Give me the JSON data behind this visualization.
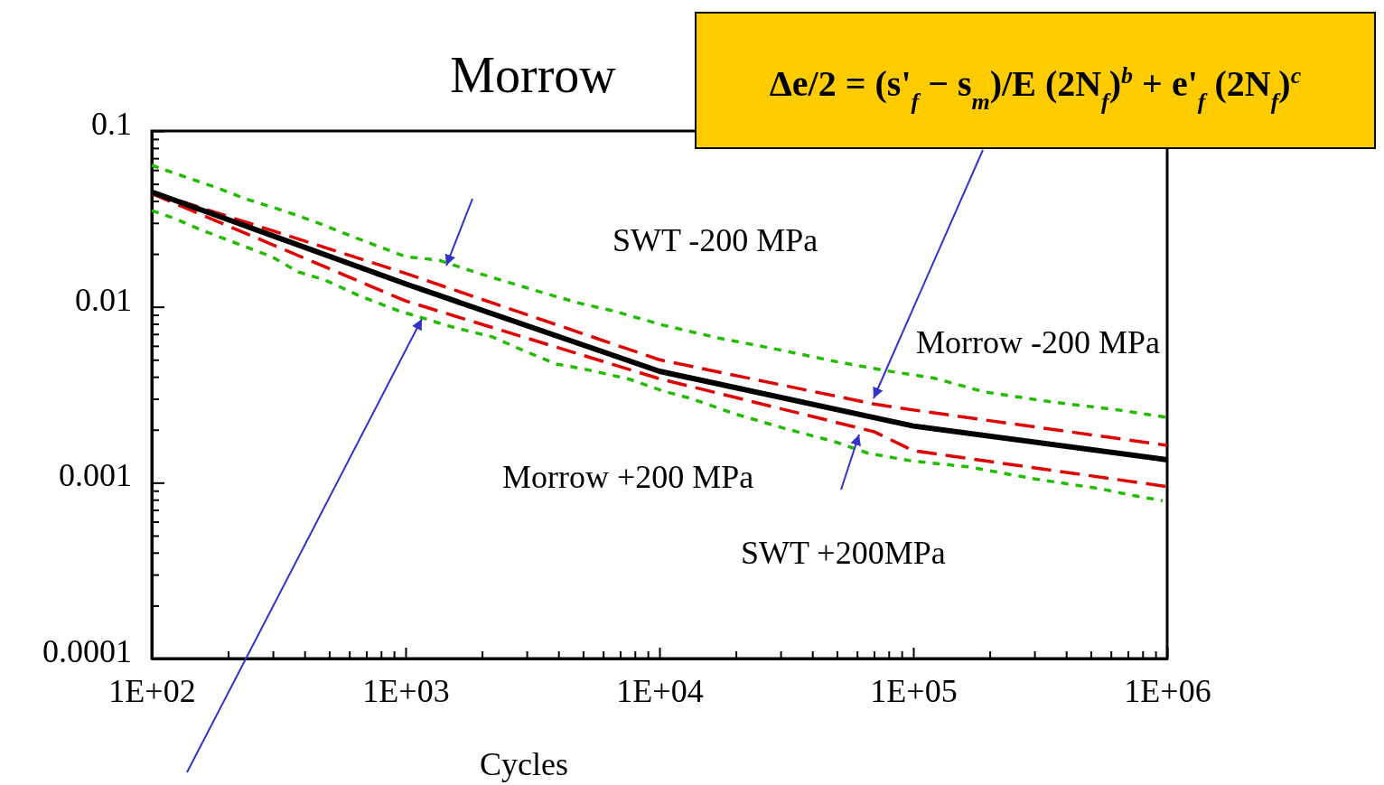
{
  "chart_data": {
    "type": "line",
    "title": "Morrow",
    "xlabel": "Cycles",
    "log": "xy",
    "grid": false,
    "xlim": [
      100,
      1000000
    ],
    "ylim": [
      0.0001,
      0.1
    ],
    "xticks": [
      {
        "value": 100,
        "label": "1E+02"
      },
      {
        "value": 200,
        "label": null
      },
      {
        "value": 300,
        "label": null
      },
      {
        "value": 400,
        "label": null
      },
      {
        "value": 500,
        "label": null
      },
      {
        "value": 600,
        "label": null
      },
      {
        "value": 700,
        "label": null
      },
      {
        "value": 800,
        "label": null
      },
      {
        "value": 900,
        "label": null
      },
      {
        "value": 1000,
        "label": "1E+03"
      },
      {
        "value": 2000,
        "label": null
      },
      {
        "value": 3000,
        "label": null
      },
      {
        "value": 4000,
        "label": null
      },
      {
        "value": 5000,
        "label": null
      },
      {
        "value": 6000,
        "label": null
      },
      {
        "value": 7000,
        "label": null
      },
      {
        "value": 8000,
        "label": null
      },
      {
        "value": 9000,
        "label": null
      },
      {
        "value": 10000,
        "label": "1E+04"
      },
      {
        "value": 20000,
        "label": null
      },
      {
        "value": 30000,
        "label": null
      },
      {
        "value": 40000,
        "label": null
      },
      {
        "value": 50000,
        "label": null
      },
      {
        "value": 60000,
        "label": null
      },
      {
        "value": 70000,
        "label": null
      },
      {
        "value": 80000,
        "label": null
      },
      {
        "value": 90000,
        "label": null
      },
      {
        "value": 100000,
        "label": "1E+05"
      },
      {
        "value": 200000,
        "label": null
      },
      {
        "value": 300000,
        "label": null
      },
      {
        "value": 400000,
        "label": null
      },
      {
        "value": 500000,
        "label": null
      },
      {
        "value": 600000,
        "label": null
      },
      {
        "value": 700000,
        "label": null
      },
      {
        "value": 800000,
        "label": null
      },
      {
        "value": 900000,
        "label": null
      },
      {
        "value": 1000000,
        "label": "1E+06"
      }
    ],
    "yticks": [
      0.0001,
      {
        "value": 0.0002,
        "label": null
      },
      {
        "value": 0.0003,
        "label": null
      },
      {
        "value": 0.0004,
        "label": null
      },
      {
        "value": 0.0005,
        "label": null
      },
      {
        "value": 0.0006,
        "label": null
      },
      {
        "value": 0.0007,
        "label": null
      },
      {
        "value": 0.0008,
        "label": null
      },
      {
        "value": 0.0009,
        "label": null
      },
      0.001,
      {
        "value": 0.002,
        "label": null
      },
      {
        "value": 0.003,
        "label": null
      },
      {
        "value": 0.004,
        "label": null
      },
      {
        "value": 0.005,
        "label": null
      },
      {
        "value": 0.006,
        "label": null
      },
      {
        "value": 0.007,
        "label": null
      },
      {
        "value": 0.008,
        "label": null
      },
      {
        "value": 0.009,
        "label": null
      },
      0.01,
      {
        "value": 0.02,
        "label": null
      },
      {
        "value": 0.03,
        "label": null
      },
      {
        "value": 0.04,
        "label": null
      },
      {
        "value": 0.05,
        "label": null
      },
      {
        "value": 0.06,
        "label": null
      },
      {
        "value": 0.07,
        "label": null
      },
      {
        "value": 0.08,
        "label": null
      },
      {
        "value": 0.09,
        "label": null
      },
      0.1
    ],
    "marker": "none",
    "series": [
      {
        "color": "#22bb00",
        "line_style": "dotted",
        "x": [
          100,
          139,
          182,
          233,
          337,
          455,
          617,
          1000,
          1355,
          1941,
          3365,
          4823,
          6531,
          10330,
          16900,
          29250,
          48980,
          76900,
          121600,
          191000,
          350000,
          642000,
          1000000
        ],
        "values": [
          0.0638,
          0.0541,
          0.0474,
          0.0412,
          0.0349,
          0.0299,
          0.0251,
          0.0193,
          0.0184,
          0.0155,
          0.0122,
          0.0105,
          0.0095,
          0.00787,
          0.00667,
          0.00572,
          0.0049,
          0.00435,
          0.00392,
          0.00328,
          0.00288,
          0.00259,
          0.00235
        ]
      },
      {
        "color": "#22bb00",
        "line_style": "dotted",
        "x": [
          100,
          123,
          143,
          172,
          233,
          297,
          377,
          482,
          653,
          937,
          1197,
          1434,
          1731,
          2196,
          2904,
          3930,
          5320,
          7640,
          10330,
          13210,
          19700,
          30950,
          48980,
          66370,
          98400,
          164800,
          302000,
          554000,
          750000,
          960000
        ],
        "values": [
          0.0353,
          0.0318,
          0.0289,
          0.026,
          0.022,
          0.0193,
          0.0158,
          0.0142,
          0.0116,
          0.0095,
          0.00855,
          0.00787,
          0.00733,
          0.00675,
          0.00565,
          0.00473,
          0.00436,
          0.00387,
          0.00332,
          0.00302,
          0.00247,
          0.00204,
          0.00171,
          0.00147,
          0.00133,
          0.00123,
          0.00105,
          0.00092,
          0.00084,
          0.00079
        ]
      },
      {
        "color": "#e00000",
        "line_style": "dashed",
        "x": [
          100,
          1000,
          10000,
          70000,
          100000,
          1000000
        ],
        "values": [
          0.045,
          0.0155,
          0.005,
          0.0028,
          0.00259,
          0.00163
        ]
      },
      {
        "color": "#e00000",
        "line_style": "dashed",
        "x": [
          100,
          1000,
          10000,
          70000,
          100000,
          1000000
        ],
        "values": [
          0.044,
          0.0108,
          0.0039,
          0.00195,
          0.00152,
          0.00095
        ]
      },
      {
        "color": "#000000",
        "line_style": "solid",
        "x": [
          100,
          1000,
          10000,
          100000,
          1000000
        ],
        "values": [
          0.045,
          0.0135,
          0.0043,
          0.0021,
          0.00135
        ]
      }
    ],
    "annotations": [
      "SWT -200 MPa",
      "Morrow -200 MPa",
      "Morrow +200 MPa",
      "SWT +200MPa",
      "Δe/2 = (s'$_{f}$ − s$_{m}$)/E (2N$_{f}$)$^{b}$ + e'$_{f}$ (2N$_{f}$)$^{c}$"
    ]
  }
}
